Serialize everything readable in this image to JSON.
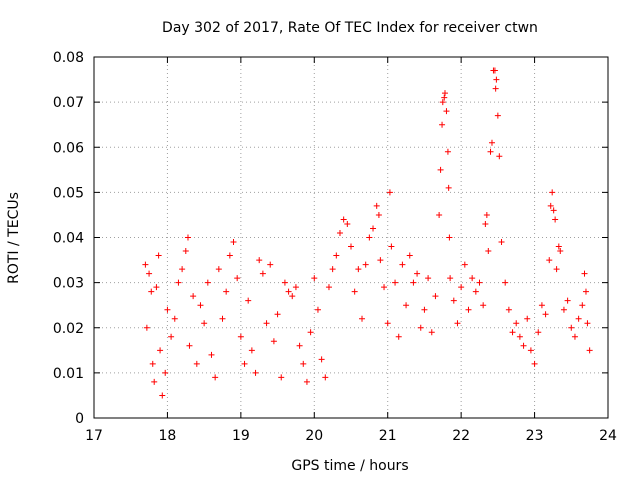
{
  "chart_data": {
    "type": "scatter",
    "title": "Day 302 of 2017, Rate Of TEC Index for receiver ctwn",
    "xlabel": "GPS time / hours",
    "ylabel": "ROTI / TECUs",
    "xlim": [
      17,
      24
    ],
    "ylim": [
      0,
      0.08
    ],
    "x_ticks": [
      "17",
      "18",
      "19",
      "20",
      "21",
      "22",
      "23",
      "24"
    ],
    "y_ticks": [
      "0",
      "0.01",
      "0.02",
      "0.03",
      "0.04",
      "0.05",
      "0.06",
      "0.07",
      "0.08"
    ],
    "grid": true,
    "marker": "+",
    "marker_color": "#ff0000",
    "series": [
      {
        "name": "ROTI",
        "points": [
          [
            17.7,
            0.034
          ],
          [
            17.72,
            0.02
          ],
          [
            17.75,
            0.032
          ],
          [
            17.78,
            0.028
          ],
          [
            17.8,
            0.012
          ],
          [
            17.82,
            0.008
          ],
          [
            17.85,
            0.029
          ],
          [
            17.88,
            0.036
          ],
          [
            17.9,
            0.015
          ],
          [
            17.93,
            0.005
          ],
          [
            17.97,
            0.01
          ],
          [
            18.0,
            0.024
          ],
          [
            18.05,
            0.018
          ],
          [
            18.1,
            0.022
          ],
          [
            18.15,
            0.03
          ],
          [
            18.2,
            0.033
          ],
          [
            18.25,
            0.037
          ],
          [
            18.28,
            0.04
          ],
          [
            18.3,
            0.016
          ],
          [
            18.35,
            0.027
          ],
          [
            18.4,
            0.012
          ],
          [
            18.45,
            0.025
          ],
          [
            18.5,
            0.021
          ],
          [
            18.55,
            0.03
          ],
          [
            18.6,
            0.014
          ],
          [
            18.65,
            0.009
          ],
          [
            18.7,
            0.033
          ],
          [
            18.75,
            0.022
          ],
          [
            18.8,
            0.028
          ],
          [
            18.85,
            0.036
          ],
          [
            18.9,
            0.039
          ],
          [
            18.95,
            0.031
          ],
          [
            19.0,
            0.018
          ],
          [
            19.05,
            0.012
          ],
          [
            19.1,
            0.026
          ],
          [
            19.15,
            0.015
          ],
          [
            19.2,
            0.01
          ],
          [
            19.25,
            0.035
          ],
          [
            19.3,
            0.032
          ],
          [
            19.35,
            0.021
          ],
          [
            19.4,
            0.034
          ],
          [
            19.45,
            0.017
          ],
          [
            19.5,
            0.023
          ],
          [
            19.55,
            0.009
          ],
          [
            19.6,
            0.03
          ],
          [
            19.65,
            0.028
          ],
          [
            19.7,
            0.027
          ],
          [
            19.75,
            0.029
          ],
          [
            19.8,
            0.016
          ],
          [
            19.85,
            0.012
          ],
          [
            19.9,
            0.008
          ],
          [
            19.95,
            0.019
          ],
          [
            20.0,
            0.031
          ],
          [
            20.05,
            0.024
          ],
          [
            20.1,
            0.013
          ],
          [
            20.15,
            0.009
          ],
          [
            20.2,
            0.029
          ],
          [
            20.25,
            0.033
          ],
          [
            20.3,
            0.036
          ],
          [
            20.35,
            0.041
          ],
          [
            20.4,
            0.044
          ],
          [
            20.45,
            0.043
          ],
          [
            20.5,
            0.038
          ],
          [
            20.55,
            0.028
          ],
          [
            20.6,
            0.033
          ],
          [
            20.65,
            0.022
          ],
          [
            20.7,
            0.034
          ],
          [
            20.75,
            0.04
          ],
          [
            20.8,
            0.042
          ],
          [
            20.85,
            0.047
          ],
          [
            20.88,
            0.045
          ],
          [
            20.9,
            0.035
          ],
          [
            20.95,
            0.029
          ],
          [
            21.0,
            0.021
          ],
          [
            21.03,
            0.05
          ],
          [
            21.05,
            0.038
          ],
          [
            21.1,
            0.03
          ],
          [
            21.15,
            0.018
          ],
          [
            21.2,
            0.034
          ],
          [
            21.25,
            0.025
          ],
          [
            21.3,
            0.036
          ],
          [
            21.35,
            0.03
          ],
          [
            21.4,
            0.032
          ],
          [
            21.45,
            0.02
          ],
          [
            21.5,
            0.024
          ],
          [
            21.55,
            0.031
          ],
          [
            21.6,
            0.019
          ],
          [
            21.65,
            0.027
          ],
          [
            21.7,
            0.045
          ],
          [
            21.72,
            0.055
          ],
          [
            21.74,
            0.065
          ],
          [
            21.75,
            0.07
          ],
          [
            21.77,
            0.071
          ],
          [
            21.78,
            0.072
          ],
          [
            21.8,
            0.068
          ],
          [
            21.82,
            0.059
          ],
          [
            21.83,
            0.051
          ],
          [
            21.84,
            0.04
          ],
          [
            21.85,
            0.031
          ],
          [
            21.9,
            0.026
          ],
          [
            21.95,
            0.021
          ],
          [
            22.0,
            0.029
          ],
          [
            22.05,
            0.034
          ],
          [
            22.1,
            0.024
          ],
          [
            22.15,
            0.031
          ],
          [
            22.2,
            0.028
          ],
          [
            22.25,
            0.03
          ],
          [
            22.3,
            0.025
          ],
          [
            22.33,
            0.043
          ],
          [
            22.35,
            0.045
          ],
          [
            22.37,
            0.037
          ],
          [
            22.4,
            0.059
          ],
          [
            22.42,
            0.061
          ],
          [
            22.44,
            0.077
          ],
          [
            22.46,
            0.077
          ],
          [
            22.47,
            0.073
          ],
          [
            22.48,
            0.075
          ],
          [
            22.5,
            0.067
          ],
          [
            22.52,
            0.058
          ],
          [
            22.55,
            0.039
          ],
          [
            22.6,
            0.03
          ],
          [
            22.65,
            0.024
          ],
          [
            22.7,
            0.019
          ],
          [
            22.75,
            0.021
          ],
          [
            22.8,
            0.018
          ],
          [
            22.85,
            0.016
          ],
          [
            22.9,
            0.022
          ],
          [
            22.95,
            0.015
          ],
          [
            23.0,
            0.012
          ],
          [
            23.05,
            0.019
          ],
          [
            23.1,
            0.025
          ],
          [
            23.15,
            0.023
          ],
          [
            23.2,
            0.035
          ],
          [
            23.22,
            0.047
          ],
          [
            23.24,
            0.05
          ],
          [
            23.26,
            0.046
          ],
          [
            23.28,
            0.044
          ],
          [
            23.3,
            0.033
          ],
          [
            23.33,
            0.038
          ],
          [
            23.35,
            0.037
          ],
          [
            23.4,
            0.024
          ],
          [
            23.45,
            0.026
          ],
          [
            23.5,
            0.02
          ],
          [
            23.55,
            0.018
          ],
          [
            23.6,
            0.022
          ],
          [
            23.65,
            0.025
          ],
          [
            23.68,
            0.032
          ],
          [
            23.7,
            0.028
          ],
          [
            23.72,
            0.021
          ],
          [
            23.75,
            0.015
          ]
        ]
      }
    ]
  }
}
